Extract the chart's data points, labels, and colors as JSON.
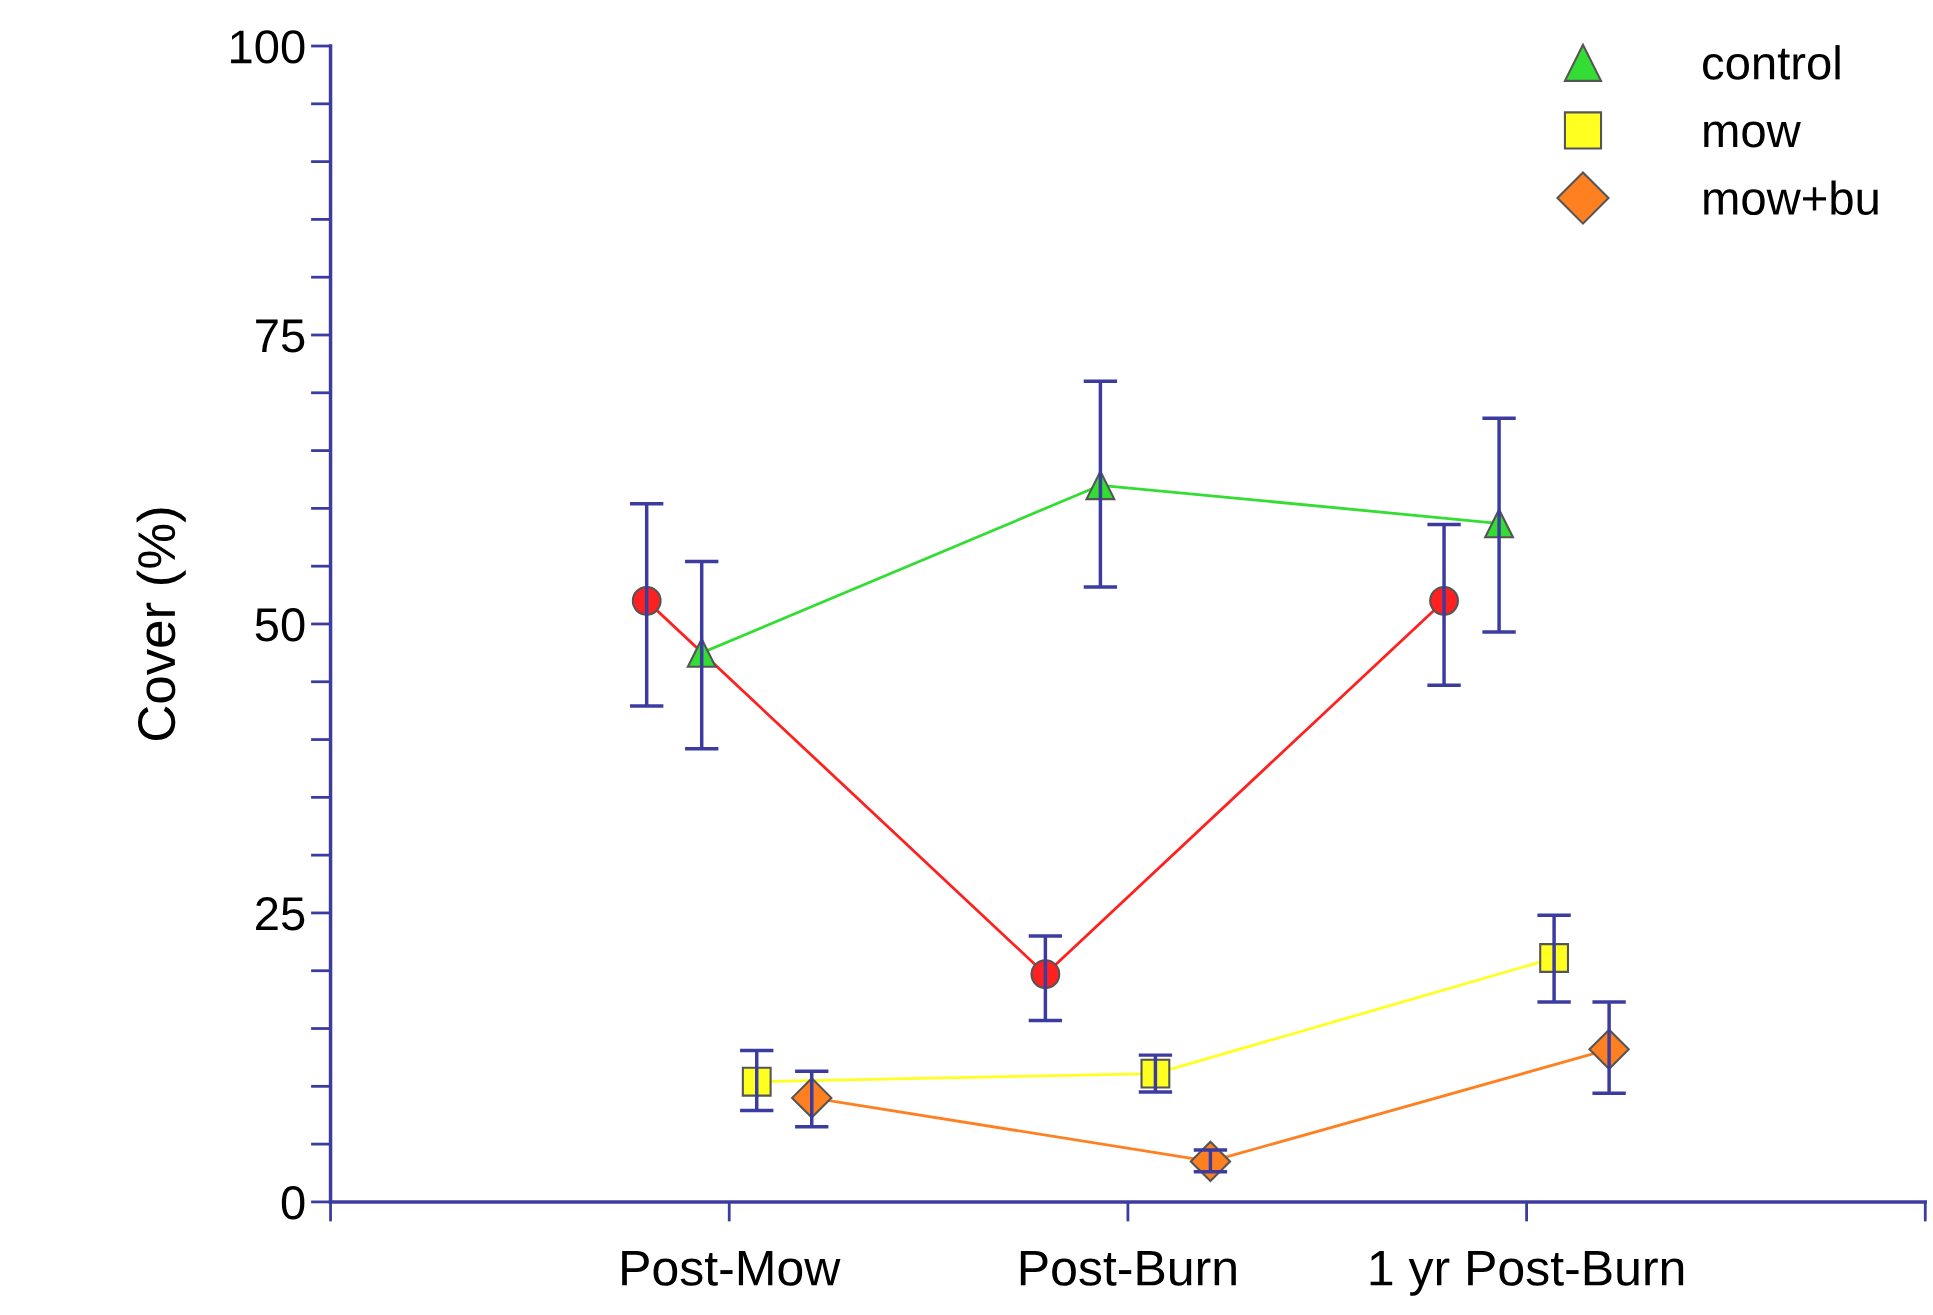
{
  "chart_data": {
    "type": "line",
    "ylabel": "Cover (%)",
    "categories": [
      "Post-Mow",
      "Post-Burn",
      "1 yr Post-Burn"
    ],
    "ylim": [
      0,
      100
    ],
    "yticks": [
      0,
      25,
      50,
      75,
      100
    ],
    "grid": false,
    "legend": "top right",
    "series": [
      {
        "color": "#ff2020",
        "marker": "circle",
        "values": [
          52.0,
          19.7,
          52.0
        ],
        "errors": [
          [
            42.9,
            60.4
          ],
          [
            15.7,
            23.0
          ],
          [
            44.7,
            58.6
          ]
        ]
      },
      {
        "name": "control",
        "color": "#33dd33",
        "marker": "triangle",
        "values": [
          47.5,
          62.0,
          58.7
        ],
        "errors": [
          [
            39.2,
            55.4
          ],
          [
            53.2,
            71.0
          ],
          [
            49.3,
            67.8
          ]
        ]
      },
      {
        "name": "mow",
        "color": "#ffff20",
        "marker": "square",
        "values": [
          10.4,
          11.1,
          21.1
        ],
        "errors": [
          [
            7.9,
            13.1
          ],
          [
            9.5,
            12.7
          ],
          [
            17.3,
            24.8
          ]
        ]
      },
      {
        "name": "mow+bu",
        "color": "#ff8020",
        "marker": "diamond",
        "values": [
          9.0,
          3.5,
          13.2
        ],
        "errors": [
          [
            6.5,
            11.3
          ],
          [
            2.6,
            4.5
          ],
          [
            9.4,
            17.3
          ]
        ]
      }
    ]
  }
}
